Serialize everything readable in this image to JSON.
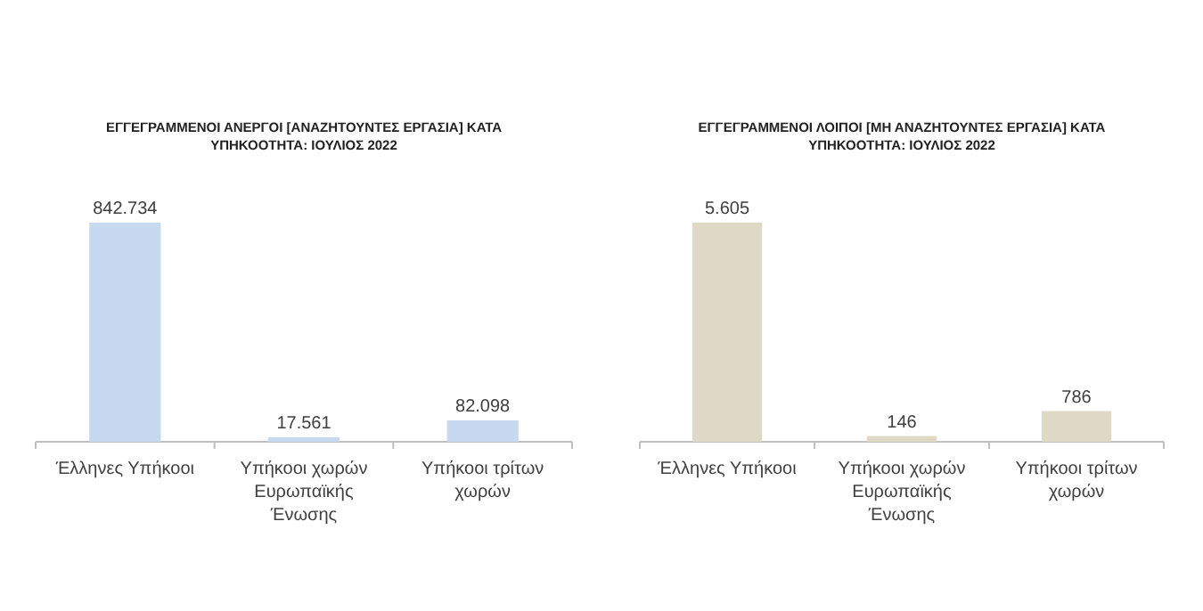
{
  "chart_data": [
    {
      "type": "bar",
      "title": "ΕΓΓΕΓΡΑΜΜΕΝΟΙ ΑΝΕΡΓΟΙ [ΑΝΑΖΗΤΟΥΝΤΕΣ ΕΡΓΑΣΙΑ] ΚΑΤΑ ΥΠΗΚΟΟΤΗΤΑ: ΙΟΥΛΙΟΣ 2022",
      "categories": [
        "Έλληνες Υπήκοοι",
        "Υπήκοοι χωρών Ευρωπαϊκής Ένωσης",
        "Υπήκοοι τρίτων χωρών"
      ],
      "values": [
        842734,
        17561,
        82098
      ],
      "value_labels": [
        "842.734",
        "17.561",
        "82.098"
      ],
      "color": "#c6d9f1"
    },
    {
      "type": "bar",
      "title": "ΕΓΓΕΓΡΑΜΜΕΝΟΙ ΛΟΙΠΟΙ [ΜΗ ΑΝΑΖΗΤΟΥΝΤΕΣ ΕΡΓΑΣΙΑ] ΚΑΤΑ ΥΠΗΚΟΟΤΗΤΑ: ΙΟΥΛΙΟΣ 2022",
      "categories": [
        "Έλληνες Υπήκοοι",
        "Υπήκοοι χωρών Ευρωπαϊκής Ένωσης",
        "Υπήκοοι τρίτων χωρών"
      ],
      "values": [
        5605,
        146,
        786
      ],
      "value_labels": [
        "5.605",
        "146",
        "786"
      ],
      "color": "#ddd9c4"
    }
  ]
}
